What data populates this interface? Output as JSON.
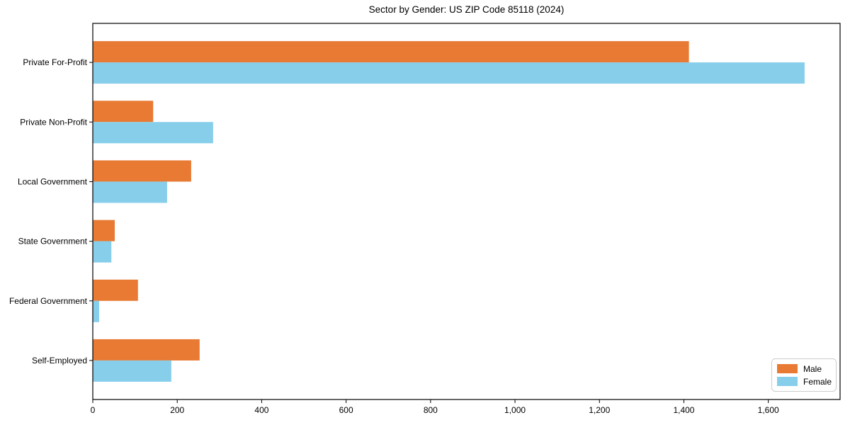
{
  "chart_data": {
    "type": "bar",
    "orientation": "horizontal",
    "title": "Sector by Gender: US ZIP Code 85118 (2024)",
    "categories": [
      "Private For-Profit",
      "Private Non-Profit",
      "Local Government",
      "State Government",
      "Federal Government",
      "Self-Employed"
    ],
    "series": [
      {
        "name": "Male",
        "color": "#E87A33",
        "values": [
          1412,
          143,
          233,
          52,
          107,
          253
        ]
      },
      {
        "name": "Female",
        "color": "#87CEEB",
        "values": [
          1686,
          285,
          176,
          44,
          15,
          186
        ]
      }
    ],
    "xlabel": "",
    "ylabel": "",
    "xlim": [
      0,
      1770
    ],
    "xticks": [
      {
        "value": 0,
        "label": "0"
      },
      {
        "value": 200,
        "label": "200"
      },
      {
        "value": 400,
        "label": "400"
      },
      {
        "value": 600,
        "label": "600"
      },
      {
        "value": 800,
        "label": "800"
      },
      {
        "value": 1000,
        "label": "1,000"
      },
      {
        "value": 1200,
        "label": "1,200"
      },
      {
        "value": 1400,
        "label": "1,400"
      },
      {
        "value": 1600,
        "label": "1,600"
      }
    ],
    "grid": false,
    "legend": {
      "position": "lower right",
      "entries": [
        "Male",
        "Female"
      ]
    },
    "colors": {
      "background": "#FFFFFF",
      "spine": "#000000",
      "text": "#000000",
      "legend_border": "#CCCCCC"
    }
  }
}
